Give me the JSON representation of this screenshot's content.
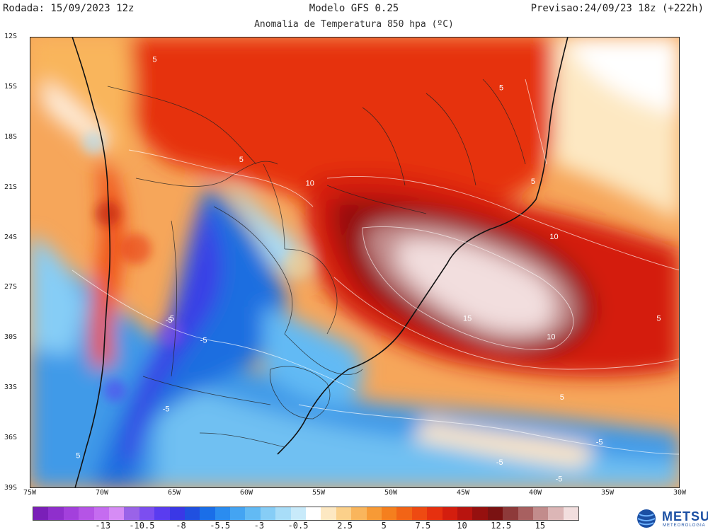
{
  "header": {
    "left": "Rodada: 15/09/2023 12z",
    "center": "Modelo GFS 0.25",
    "right": "Previsao:24/09/23 18z (+222h)",
    "subtitle": "Anomalia de Temperatura 850 hpa (ºC)"
  },
  "axes": {
    "lat_ticks": [
      "12S",
      "15S",
      "18S",
      "21S",
      "24S",
      "27S",
      "30S",
      "33S",
      "36S",
      "39S"
    ],
    "lon_ticks": [
      "75W",
      "70W",
      "65W",
      "60W",
      "55W",
      "50W",
      "45W",
      "40W",
      "35W",
      "30W"
    ]
  },
  "contour_labels": [
    {
      "text": "5",
      "lon": -66.5,
      "lat": -13.5
    },
    {
      "text": "5",
      "lon": -60.5,
      "lat": -19.5
    },
    {
      "text": "5",
      "lon": -42.5,
      "lat": -15.2
    },
    {
      "text": "5",
      "lon": -40.3,
      "lat": -20.8
    },
    {
      "text": "10",
      "lon": -55.9,
      "lat": -20.9
    },
    {
      "text": "10",
      "lon": -39.0,
      "lat": -24.1
    },
    {
      "text": "10",
      "lon": -39.2,
      "lat": -30.1
    },
    {
      "text": "15",
      "lon": -45.0,
      "lat": -29.0
    },
    {
      "text": "5",
      "lon": -31.6,
      "lat": -29.0
    },
    {
      "text": "5",
      "lon": -38.3,
      "lat": -33.7
    },
    {
      "text": "5",
      "lon": -65.3,
      "lat": -29.0
    },
    {
      "text": "-5",
      "lon": -65.6,
      "lat": -29.1
    },
    {
      "text": "-5",
      "lon": -63.2,
      "lat": -30.3
    },
    {
      "text": "-5",
      "lon": -65.8,
      "lat": -34.4
    },
    {
      "text": "-5",
      "lon": -35.8,
      "lat": -36.4
    },
    {
      "text": "-5",
      "lon": -42.7,
      "lat": -37.6
    },
    {
      "text": "-5",
      "lon": -38.6,
      "lat": -38.6
    },
    {
      "text": "5",
      "lon": -71.8,
      "lat": -37.2
    }
  ],
  "colorbar": {
    "colors": [
      "#7a1fb8",
      "#8f2fcc",
      "#a340dc",
      "#b554e6",
      "#c56cf0",
      "#d68cf5",
      "#9a63e8",
      "#7c4ef0",
      "#5a3cf0",
      "#3a38e6",
      "#2050e0",
      "#1a6ee8",
      "#2a8cf0",
      "#44a4f2",
      "#62baf4",
      "#86cdf6",
      "#a8ddf8",
      "#c8eafa",
      "#ffffff",
      "#fde8c2",
      "#fbd08a",
      "#f9b55c",
      "#f79a36",
      "#f57f1e",
      "#f26416",
      "#ee4a12",
      "#e6300f",
      "#d41e0e",
      "#b8140f",
      "#96100f",
      "#7a1212",
      "#8e3a3a",
      "#a86060",
      "#c28c8c",
      "#dcb6b6",
      "#f2dede"
    ],
    "labels": [
      "-13",
      "-10.5",
      "-8",
      "-5.5",
      "-3",
      "-0.5",
      "2.5",
      "5",
      "7.5",
      "10",
      "12.5",
      "15"
    ]
  },
  "logo": {
    "name": "METSUL",
    "sub": "METEOROLOGIA",
    "icon": "metsul-globe-icon"
  }
}
